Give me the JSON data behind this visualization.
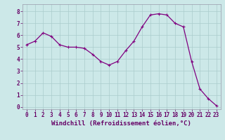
{
  "x": [
    0,
    1,
    2,
    3,
    4,
    5,
    6,
    7,
    8,
    9,
    10,
    11,
    12,
    13,
    14,
    15,
    16,
    17,
    18,
    19,
    20,
    21,
    22,
    23
  ],
  "y": [
    5.2,
    5.5,
    6.2,
    5.9,
    5.2,
    5.0,
    5.0,
    4.9,
    4.4,
    3.8,
    3.5,
    3.8,
    4.7,
    5.5,
    6.7,
    7.7,
    7.8,
    7.7,
    7.0,
    6.7,
    3.8,
    1.5,
    0.7,
    0.1
  ],
  "line_color": "#800080",
  "marker": "+",
  "marker_size": 3,
  "bg_color": "#cce8e8",
  "grid_color": "#aacccc",
  "xlabel": "Windchill (Refroidissement éolien,°C)",
  "xlabel_fontsize": 6.5,
  "xtick_labels": [
    "0",
    "1",
    "2",
    "3",
    "4",
    "5",
    "6",
    "7",
    "8",
    "9",
    "10",
    "11",
    "12",
    "13",
    "14",
    "15",
    "16",
    "17",
    "18",
    "19",
    "20",
    "21",
    "22",
    "23"
  ],
  "ytick_labels": [
    "0",
    "1",
    "2",
    "3",
    "4",
    "5",
    "6",
    "7",
    "8"
  ],
  "ylim": [
    -0.2,
    8.6
  ],
  "xlim": [
    -0.5,
    23.5
  ],
  "tick_fontsize": 5.5,
  "line_width": 0.9,
  "spine_color": "#9999aa"
}
